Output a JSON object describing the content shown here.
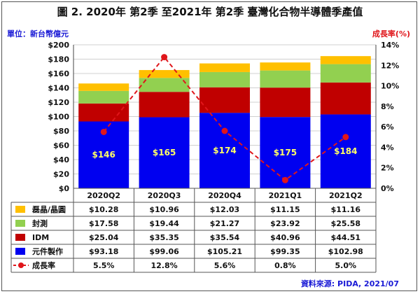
{
  "header": {
    "title": "圖 2. 2020年 第2季 至2021年 第2季 臺灣化合物半導體季產值",
    "unit": "單位：新台幣億元",
    "rate_label": "成長率(%)",
    "source": "資料來源: PIDA, 2021/07"
  },
  "colors": {
    "foundry": "#0000f0",
    "idm": "#c00000",
    "packaging": "#92d050",
    "epi": "#ffc000",
    "growth": "#e0161b",
    "total_label": "#ffff66"
  },
  "chart_data": {
    "type": "bar",
    "stacked": true,
    "categories": [
      "2020Q2",
      "2020Q3",
      "2020Q4",
      "2021Q1",
      "2021Q2"
    ],
    "series": [
      {
        "name": "元件製作",
        "key": "foundry",
        "values": [
          93.18,
          99.06,
          105.21,
          99.35,
          102.98
        ]
      },
      {
        "name": "IDM",
        "key": "idm",
        "values": [
          25.04,
          35.35,
          35.54,
          40.96,
          44.51
        ]
      },
      {
        "name": "封測",
        "key": "packaging",
        "values": [
          17.58,
          19.44,
          21.27,
          23.92,
          25.58
        ]
      },
      {
        "name": "磊晶/晶圓",
        "key": "epi",
        "values": [
          10.28,
          10.96,
          12.03,
          11.15,
          11.16
        ]
      }
    ],
    "totals": [
      "$146",
      "$165",
      "$174",
      "$175",
      "$184"
    ],
    "growth": {
      "name": "成長率",
      "values": [
        5.5,
        12.8,
        5.6,
        0.8,
        5.0
      ]
    },
    "ylim": [
      0,
      200
    ],
    "yticks": [
      "$0",
      "$20",
      "$40",
      "$60",
      "$80",
      "$100",
      "$120",
      "$140",
      "$160",
      "$180",
      "$200"
    ],
    "y2lim": [
      0,
      14
    ],
    "y2ticks": [
      "0%",
      "2%",
      "4%",
      "6%",
      "8%",
      "10%",
      "12%",
      "14%"
    ],
    "grid": true
  },
  "table": {
    "rows": [
      {
        "label": "磊晶/晶圓",
        "key": "epi",
        "kind": "swatch",
        "cells": [
          "$10.28",
          "$10.96",
          "$12.03",
          "$11.15",
          "$11.16"
        ]
      },
      {
        "label": "封測",
        "key": "packaging",
        "kind": "swatch",
        "cells": [
          "$17.58",
          "$19.44",
          "$21.27",
          "$23.92",
          "$25.58"
        ]
      },
      {
        "label": "IDM",
        "key": "idm",
        "kind": "swatch",
        "cells": [
          "$25.04",
          "$35.35",
          "$35.54",
          "$40.96",
          "$44.51"
        ]
      },
      {
        "label": "元件製作",
        "key": "foundry",
        "kind": "swatch",
        "cells": [
          "$93.18",
          "$99.06",
          "$105.21",
          "$99.35",
          "$102.98"
        ]
      },
      {
        "label": "成長率",
        "key": "growth",
        "kind": "line",
        "cells": [
          "5.5%",
          "12.8%",
          "5.6%",
          "0.8%",
          "5.0%"
        ]
      }
    ]
  }
}
